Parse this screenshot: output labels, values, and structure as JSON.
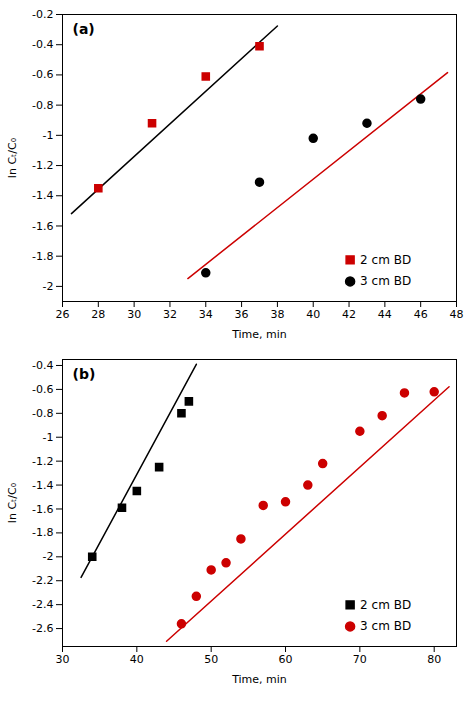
{
  "chart_data": [
    {
      "type": "scatter",
      "title": "(a)",
      "xlabel": "Time, min",
      "ylabel": "ln Cₜ/C₀",
      "xlim": [
        26,
        48
      ],
      "xticks": [
        26,
        28,
        30,
        32,
        34,
        36,
        38,
        40,
        42,
        44,
        46,
        48
      ],
      "ylim": [
        -2.1,
        -0.2
      ],
      "yticks": [
        -2,
        -1.8,
        -1.6,
        -1.4,
        -1.2,
        -1,
        -0.8,
        -0.6,
        -0.4,
        -0.2
      ],
      "grid": false,
      "legend": "lower right",
      "series": [
        {
          "name": "2 cm BD",
          "color": "#cc0000",
          "marker": "square",
          "x": [
            28,
            31,
            34,
            37
          ],
          "values": [
            -1.35,
            -0.92,
            -0.61,
            -0.41
          ],
          "fit": {
            "color": "#000000",
            "x": [
              26.5,
              38.0
            ],
            "values": [
              -1.518,
              -0.276
            ]
          }
        },
        {
          "name": "3 cm BD",
          "color": "#000000",
          "marker": "circle",
          "x": [
            34,
            37,
            40,
            43,
            46
          ],
          "values": [
            -1.91,
            -1.31,
            -1.02,
            -0.92,
            -0.76
          ],
          "fit": {
            "color": "#cc0000",
            "x": [
              33.0,
              47.5
            ],
            "values": [
              -1.948,
              -0.585
            ]
          }
        }
      ]
    },
    {
      "type": "scatter",
      "title": "(b)",
      "xlabel": "Time, min",
      "ylabel": "ln Cₜ/C₀",
      "xlim": [
        30,
        83
      ],
      "xticks": [
        30,
        40,
        50,
        60,
        70,
        80
      ],
      "ylim": [
        -2.75,
        -0.35
      ],
      "yticks": [
        -2.6,
        -2.4,
        -2.2,
        -2,
        -1.8,
        -1.6,
        -1.4,
        -1.2,
        -1,
        -0.8,
        -0.6,
        -0.4
      ],
      "grid": false,
      "legend": "lower right",
      "series": [
        {
          "name": "2 cm BD",
          "color": "#000000",
          "marker": "square",
          "x": [
            34,
            38,
            40,
            43,
            46,
            47
          ],
          "values": [
            -2.0,
            -1.59,
            -1.45,
            -1.25,
            -0.8,
            -0.7
          ],
          "fit": {
            "color": "#000000",
            "x": [
              32.5,
              48.0
            ],
            "values": [
              -2.1725,
              -0.39
            ]
          }
        },
        {
          "name": "3 cm BD",
          "color": "#cc0000",
          "marker": "circle",
          "x": [
            46,
            48,
            50,
            52,
            54,
            57,
            60,
            63,
            65,
            70,
            73,
            76,
            80
          ],
          "values": [
            -2.56,
            -2.33,
            -2.11,
            -2.05,
            -1.85,
            -1.57,
            -1.54,
            -1.4,
            -1.22,
            -0.95,
            -0.82,
            -0.63,
            -0.62
          ],
          "fit": {
            "color": "#cc0000",
            "x": [
              44.0,
              82.0
            ],
            "values": [
              -2.706,
              -0.578
            ]
          }
        }
      ]
    }
  ]
}
